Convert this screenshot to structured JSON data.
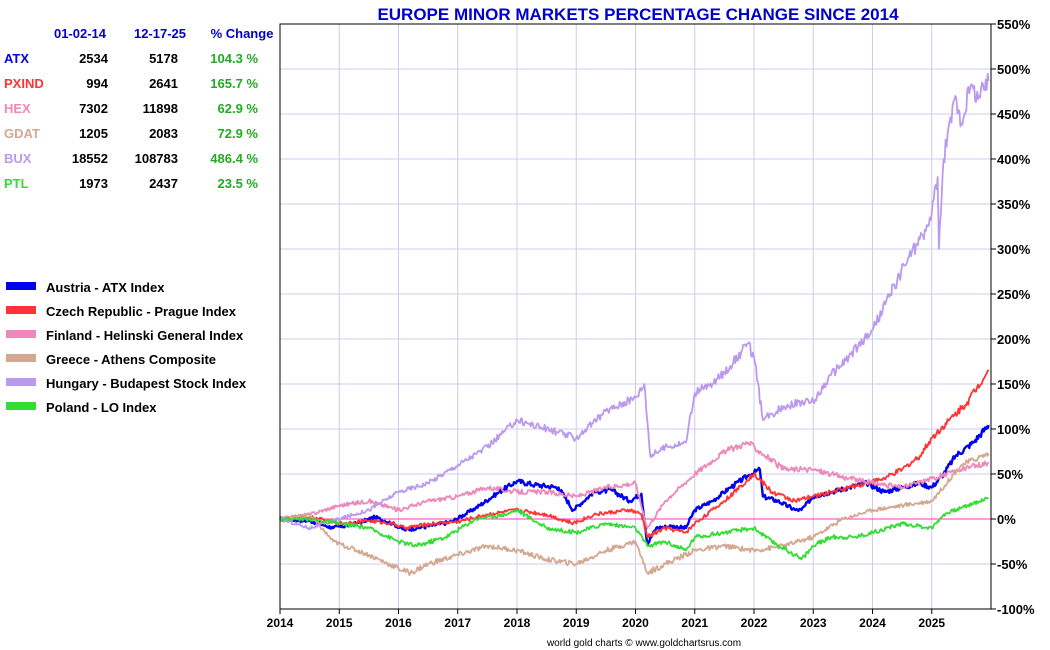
{
  "chart_data": {
    "type": "line",
    "title": "EUROPE MINOR MARKETS PERCENTAGE CHANGE SINCE 2014",
    "credit": "world gold charts © www.goldchartsrus.com",
    "x_ticks": [
      "2014",
      "2015",
      "2016",
      "2017",
      "2018",
      "2019",
      "2020",
      "2021",
      "2022",
      "2023",
      "2024",
      "2025"
    ],
    "y_ticks": [
      -100,
      -50,
      0,
      50,
      100,
      150,
      200,
      250,
      300,
      350,
      400,
      450,
      500,
      550
    ],
    "y_tick_suffix": "%",
    "xlim": [
      2014.0,
      2026.0
    ],
    "ylim": [
      -100,
      550
    ],
    "grid": true,
    "zero_line_color": "#ff33cc",
    "legend_position": "left",
    "table": {
      "headers": [
        "01-02-14",
        "12-17-25",
        "% Change"
      ],
      "rows": [
        {
          "code": "ATX",
          "start": "2534",
          "end": "5178",
          "change": "104.3 %",
          "color": "#0000ee"
        },
        {
          "code": "PXIND",
          "start": "994",
          "end": "2641",
          "change": "165.7 %",
          "color": "#ff3333"
        },
        {
          "code": "HEX",
          "start": "7302",
          "end": "11898",
          "change": "62.9 %",
          "color": "#ee88bb"
        },
        {
          "code": "GDAT",
          "start": "1205",
          "end": "2083",
          "change": "72.9 %",
          "color": "#d4a890"
        },
        {
          "code": "BUX",
          "start": "18552",
          "end": "108783",
          "change": "486.4 %",
          "color": "#bb99ee"
        },
        {
          "code": "PTL",
          "start": "1973",
          "end": "2437",
          "change": "23.5 %",
          "color": "#33dd33"
        }
      ]
    },
    "series": [
      {
        "name": "Austria - ATX Index",
        "color": "#0000ee",
        "x": [
          2014.0,
          2014.5,
          2014.9,
          2015.3,
          2015.6,
          2015.9,
          2016.1,
          2016.5,
          2016.9,
          2017.3,
          2017.7,
          2018.0,
          2018.3,
          2018.7,
          2018.95,
          2019.3,
          2019.6,
          2019.9,
          2020.1,
          2020.2,
          2020.35,
          2020.6,
          2020.85,
          2021.0,
          2021.3,
          2021.6,
          2021.9,
          2022.1,
          2022.15,
          2022.4,
          2022.7,
          2022.8,
          2023.0,
          2023.3,
          2023.6,
          2023.9,
          2024.2,
          2024.5,
          2024.8,
          2025.0,
          2025.2,
          2025.4,
          2025.7,
          2025.96
        ],
        "y": [
          0,
          -2,
          -10,
          -5,
          2,
          -5,
          -12,
          -8,
          -3,
          12,
          30,
          42,
          38,
          35,
          10,
          30,
          32,
          20,
          28,
          -28,
          -10,
          -8,
          -10,
          10,
          20,
          35,
          48,
          55,
          25,
          20,
          10,
          10,
          25,
          30,
          35,
          40,
          30,
          35,
          40,
          35,
          50,
          70,
          85,
          104.3
        ]
      },
      {
        "name": "Czech Republic - Prague Index",
        "color": "#ff3333",
        "x": [
          2014.0,
          2014.5,
          2015.0,
          2015.5,
          2015.9,
          2016.1,
          2016.6,
          2017.0,
          2017.5,
          2018.0,
          2018.5,
          2018.95,
          2019.3,
          2019.9,
          2020.1,
          2020.2,
          2020.5,
          2020.85,
          2021.0,
          2021.5,
          2022.0,
          2022.3,
          2022.7,
          2023.0,
          2023.3,
          2023.6,
          2023.9,
          2024.2,
          2024.5,
          2024.8,
          2025.0,
          2025.3,
          2025.6,
          2025.96
        ],
        "y": [
          0,
          2,
          -5,
          -2,
          -5,
          -10,
          -5,
          -3,
          5,
          10,
          5,
          -5,
          5,
          10,
          5,
          -20,
          -10,
          -15,
          -5,
          20,
          50,
          30,
          20,
          25,
          30,
          35,
          40,
          45,
          55,
          70,
          90,
          110,
          130,
          165.7
        ]
      },
      {
        "name": "Finland - Helinski General Index",
        "color": "#ee88bb",
        "x": [
          2014.0,
          2014.5,
          2015.0,
          2015.5,
          2016.0,
          2016.5,
          2017.0,
          2017.5,
          2018.0,
          2018.5,
          2019.0,
          2019.5,
          2020.0,
          2020.2,
          2020.5,
          2021.0,
          2021.5,
          2021.9,
          2022.1,
          2022.5,
          2023.0,
          2023.3,
          2023.6,
          2024.0,
          2024.5,
          2025.0,
          2025.5,
          2025.96
        ],
        "y": [
          0,
          5,
          15,
          20,
          10,
          20,
          25,
          35,
          30,
          30,
          25,
          35,
          40,
          -10,
          20,
          50,
          75,
          85,
          75,
          55,
          55,
          50,
          45,
          40,
          35,
          45,
          55,
          62.9
        ]
      },
      {
        "name": "Greece - Athens Composite",
        "color": "#d4a890",
        "x": [
          2014.0,
          2014.5,
          2014.9,
          2015.5,
          2016.0,
          2016.2,
          2016.5,
          2017.0,
          2017.5,
          2018.0,
          2018.5,
          2019.0,
          2019.5,
          2020.0,
          2020.2,
          2020.5,
          2021.0,
          2021.5,
          2022.0,
          2022.5,
          2023.0,
          2023.5,
          2024.0,
          2024.5,
          2025.0,
          2025.5,
          2025.96
        ],
        "y": [
          0,
          5,
          -25,
          -40,
          -55,
          -60,
          -50,
          -40,
          -30,
          -35,
          -45,
          -50,
          -35,
          -25,
          -60,
          -50,
          -35,
          -30,
          -35,
          -30,
          -20,
          0,
          10,
          15,
          20,
          60,
          72.9
        ]
      },
      {
        "name": "Hungary - Budapest Stock Index",
        "color": "#bb99ee",
        "x": [
          2014.0,
          2014.5,
          2015.0,
          2015.5,
          2016.0,
          2016.5,
          2017.0,
          2017.5,
          2018.0,
          2018.5,
          2019.0,
          2019.5,
          2020.0,
          2020.15,
          2020.25,
          2020.5,
          2020.85,
          2021.0,
          2021.3,
          2021.6,
          2021.9,
          2022.0,
          2022.15,
          2022.5,
          2022.8,
          2023.0,
          2023.3,
          2023.6,
          2024.0,
          2024.3,
          2024.6,
          2024.9,
          2025.0,
          2025.1,
          2025.12,
          2025.2,
          2025.4,
          2025.5,
          2025.65,
          2025.8,
          2025.96
        ],
        "y": [
          0,
          -10,
          0,
          10,
          30,
          40,
          60,
          80,
          110,
          100,
          90,
          120,
          135,
          150,
          70,
          80,
          85,
          140,
          150,
          170,
          195,
          180,
          110,
          125,
          130,
          130,
          160,
          180,
          210,
          250,
          290,
          320,
          340,
          380,
          300,
          400,
          470,
          440,
          480,
          470,
          486.4
        ]
      },
      {
        "name": "Poland - LO Index",
        "color": "#33dd33",
        "x": [
          2014.0,
          2014.5,
          2015.0,
          2015.5,
          2016.0,
          2016.3,
          2016.8,
          2017.3,
          2017.8,
          2018.0,
          2018.5,
          2019.0,
          2019.5,
          2020.0,
          2020.2,
          2020.5,
          2020.85,
          2021.0,
          2021.5,
          2022.0,
          2022.3,
          2022.7,
          2022.8,
          2023.0,
          2023.3,
          2023.7,
          2024.0,
          2024.5,
          2025.0,
          2025.2,
          2025.6,
          2025.96
        ],
        "y": [
          0,
          0,
          -5,
          -10,
          -25,
          -30,
          -20,
          0,
          5,
          10,
          -10,
          -15,
          -5,
          -10,
          -30,
          -25,
          -35,
          -20,
          -15,
          -10,
          -25,
          -40,
          -45,
          -30,
          -20,
          -20,
          -15,
          -5,
          -10,
          5,
          15,
          23.5
        ]
      }
    ]
  }
}
